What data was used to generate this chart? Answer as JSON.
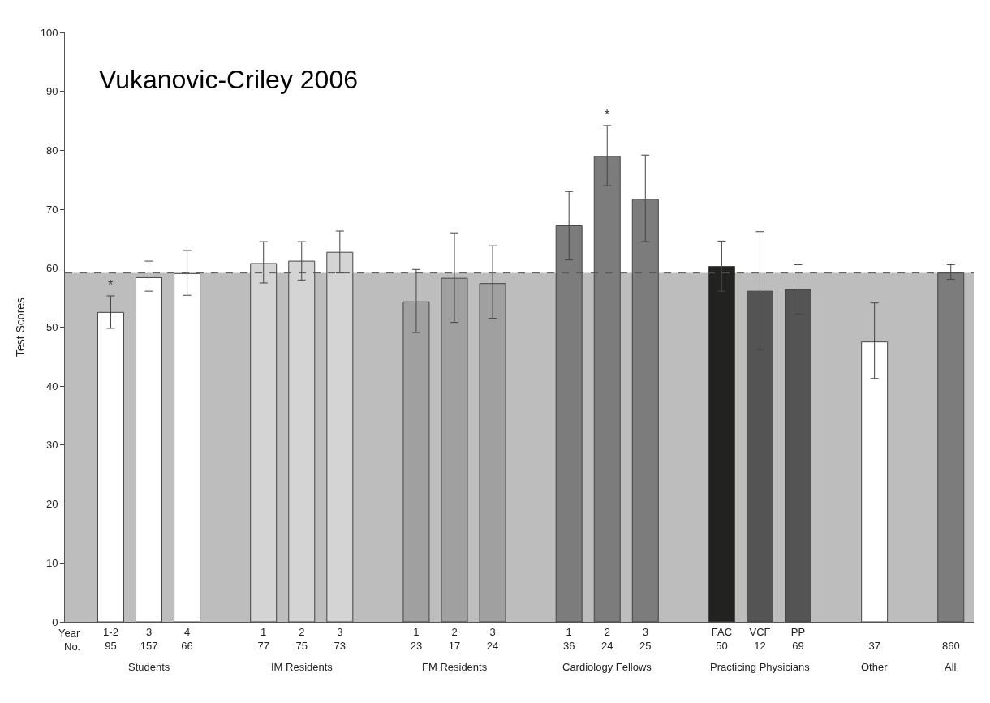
{
  "chart_data": {
    "type": "bar",
    "title": "Vukanovic-Criley 2006",
    "ylabel": "Test Scores",
    "categories": [
      "1-2\n95",
      "3\n157",
      "4\n66",
      null,
      "1\n77",
      "2\n75",
      "3\n73",
      null,
      "1\n23",
      "2\n17",
      "3\n24",
      null,
      "1\n36",
      "2\n24",
      "3\n25",
      null,
      "FAC\n50",
      "VCF\n12",
      "PP\n69",
      null,
      "\n37",
      null,
      "\n860"
    ],
    "values": [
      52.5,
      58.4,
      59.1,
      null,
      60.8,
      61.2,
      62.7,
      null,
      54.3,
      58.3,
      57.4,
      null,
      67.2,
      79.0,
      71.7,
      null,
      60.3,
      56.1,
      56.4,
      null,
      47.5,
      null,
      59.2
    ],
    "errors": [
      [
        49.8,
        55.3
      ],
      [
        56.1,
        61.2
      ],
      [
        55.4,
        63.0
      ],
      null,
      [
        57.5,
        64.5
      ],
      [
        58.0,
        64.5
      ],
      [
        59.2,
        66.3
      ],
      null,
      [
        49.1,
        59.8
      ],
      [
        50.8,
        66.0
      ],
      [
        51.5,
        63.8
      ],
      null,
      [
        61.4,
        73.0
      ],
      [
        74.0,
        84.2
      ],
      [
        64.5,
        79.2
      ],
      null,
      [
        56.1,
        64.6
      ],
      [
        46.2,
        66.2
      ],
      [
        52.2,
        60.6
      ],
      null,
      [
        41.3,
        54.1
      ],
      null,
      [
        58.1,
        60.6
      ]
    ],
    "colors": [
      "#ffffff",
      "#ffffff",
      "#ffffff",
      null,
      "#d4d4d4",
      "#d4d4d4",
      "#d4d4d4",
      null,
      "#a0a0a0",
      "#a0a0a0",
      "#a0a0a0",
      null,
      "#7b7c7b",
      "#7b7c7b",
      "#7b7c7b",
      null,
      "#222220",
      "#545454",
      "#545454",
      null,
      "#ffffff",
      null,
      "#7b7c7b"
    ],
    "ylim": [
      0,
      100
    ],
    "yticks": [
      0,
      10,
      20,
      30,
      40,
      50,
      60,
      70,
      80,
      90,
      100
    ],
    "ref_lines": [
      {
        "axis": "y",
        "value": 59.2,
        "color": "#555555",
        "line_style": "dashed"
      }
    ],
    "bands": [
      {
        "axis": "y",
        "from": 0,
        "to": 59.2,
        "color": "#bdbdbd"
      }
    ],
    "annotations": [
      {
        "text": "*",
        "x": "1-2\n95",
        "y": 55.3
      },
      {
        "text": "*",
        "x": "2\n24",
        "y": 84.2
      },
      "Year",
      "No.",
      "Students",
      "IM Residents",
      "FM Residents",
      "Cardiology Fellows",
      "Practicing Physicians",
      "Other",
      "All"
    ]
  }
}
